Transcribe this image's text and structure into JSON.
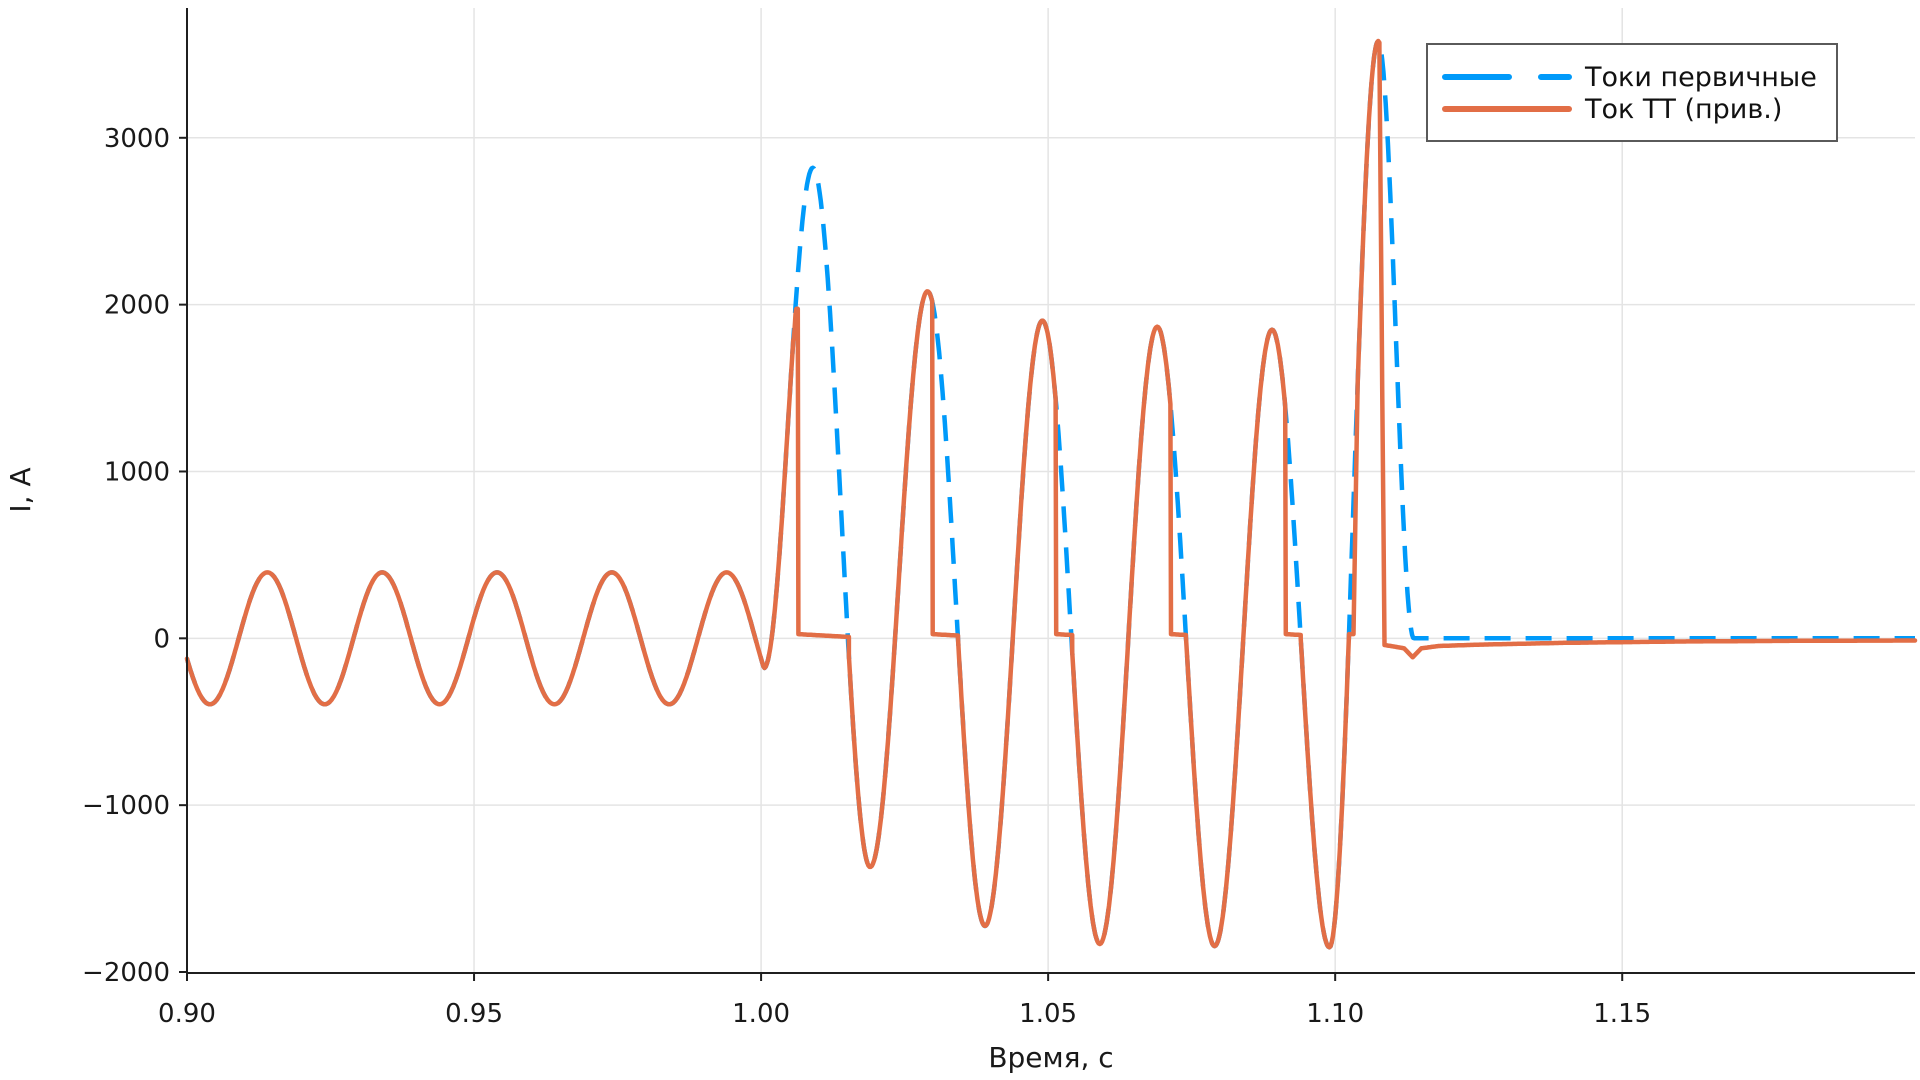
{
  "figure": {
    "background": "#ffffff",
    "axis_color": "#1f1f1f",
    "grid_color": "#e4e4e4",
    "tick_label_color": "#191919"
  },
  "chart_data": {
    "type": "line",
    "title": "",
    "xlabel": "Время, с",
    "ylabel": "I, А",
    "xlim": [
      0.9,
      1.201
    ],
    "ylim": [
      -2006,
      3778
    ],
    "grid": true,
    "x_ticks": {
      "values": [
        0.9,
        0.95,
        1.0,
        1.05,
        1.1,
        1.15
      ],
      "labels": [
        "0.90",
        "0.95",
        "1.00",
        "1.05",
        "1.10",
        "1.15"
      ]
    },
    "y_ticks": {
      "values": [
        -2000,
        -1000,
        0,
        1000,
        2000,
        3000
      ],
      "labels": [
        "−2000",
        "−1000",
        "0",
        "1000",
        "2000",
        "3000"
      ]
    },
    "legend": {
      "position": "top-right",
      "entries": [
        {
          "label": "Токи первичные",
          "color": "#009AFA",
          "dash": true
        },
        {
          "label": "Ток ТТ (прив.)",
          "color": "#E26E46",
          "dash": false
        }
      ]
    },
    "series": {
      "primary": {
        "name": "Токи первичные",
        "color": "#009AFA",
        "style": "dashed",
        "line_width": 4.5,
        "steady_state": {
          "t_start": 0.9,
          "t_end": 1.0005,
          "amplitude": 395,
          "period": 0.02,
          "zero_crossing_up": 0.909
        },
        "fault_extremes": [
          [
            1.0005,
            -179
          ],
          [
            1.009,
            2820
          ],
          [
            1.019,
            -1371
          ],
          [
            1.029,
            2080
          ],
          [
            1.039,
            -1724
          ],
          [
            1.049,
            1904
          ],
          [
            1.059,
            -1832
          ],
          [
            1.069,
            1868
          ],
          [
            1.079,
            -1845
          ],
          [
            1.089,
            1850
          ],
          [
            1.099,
            -1852
          ],
          [
            1.1075,
            3580
          ],
          [
            1.1137,
            0
          ]
        ],
        "tail": {
          "t_end": 1.201,
          "value": 0
        }
      },
      "ct": {
        "name": "Ток ТТ (прив.)",
        "color": "#E26E46",
        "style": "solid",
        "line_width": 4.5,
        "saturation": {
          "first_cycle": {
            "t_separate": 1.0056,
            "own_peak": [
              1.00615,
              1975
            ],
            "t_drop": 1.0064
          },
          "drop_times": [
            1.0298,
            1.0513,
            1.0713,
            1.0913
          ],
          "flat_level_start": 25,
          "flat_slope_per_s": -1900,
          "spike_notch": {
            "t_start": 1.1024,
            "t_end": 1.1033,
            "level": 25,
            "t_rejoin": 1.1039
          },
          "spike_drop_t": 1.1077,
          "tail_points": [
            [
              1.1077,
              3540
            ],
            [
              1.1082,
              1500
            ],
            [
              1.1086,
              -40
            ],
            [
              1.11,
              -48
            ],
            [
              1.112,
              -60
            ],
            [
              1.1135,
              -114
            ],
            [
              1.115,
              -60
            ],
            [
              1.118,
              -46
            ],
            [
              1.125,
              -38
            ],
            [
              1.14,
              -27
            ],
            [
              1.16,
              -19
            ],
            [
              1.18,
              -15
            ],
            [
              1.201,
              -13
            ]
          ]
        }
      }
    }
  }
}
